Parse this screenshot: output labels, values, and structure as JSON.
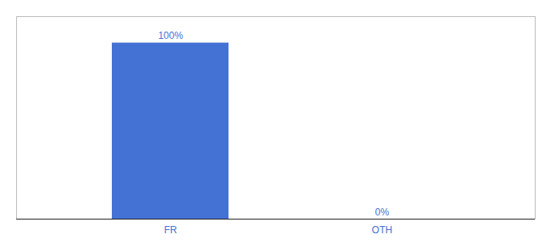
{
  "chart_data": {
    "type": "bar",
    "categories": [
      "FR",
      "OTH"
    ],
    "values": [
      100,
      0
    ],
    "value_labels": [
      "100%",
      "0%"
    ],
    "data_labels": true,
    "color": "#4472d4",
    "ylim": [
      0,
      115
    ],
    "tick_labels": "x"
  }
}
